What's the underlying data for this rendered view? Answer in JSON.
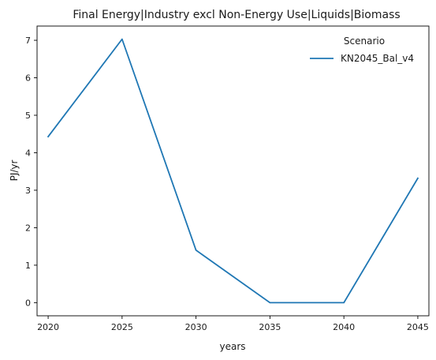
{
  "chart_data": {
    "type": "line",
    "title": "Final Energy|Industry excl Non-Energy Use|Liquids|Biomass",
    "xlabel": "years",
    "ylabel": "PJ/yr",
    "x": [
      2020,
      2025,
      2030,
      2035,
      2040,
      2045
    ],
    "xticks": [
      2020,
      2025,
      2030,
      2035,
      2040,
      2045
    ],
    "yticks": [
      0,
      1,
      2,
      3,
      4,
      5,
      6,
      7
    ],
    "xlim": [
      2019.25,
      2045.75
    ],
    "ylim": [
      -0.35,
      7.38
    ],
    "grid": false,
    "legend": {
      "title": "Scenario",
      "placement": "top-right"
    },
    "series": [
      {
        "name": "KN2045_Bal_v4",
        "color": "#1f77b4",
        "values": [
          4.43,
          7.03,
          1.4,
          0.0,
          0.0,
          3.32
        ]
      }
    ]
  }
}
